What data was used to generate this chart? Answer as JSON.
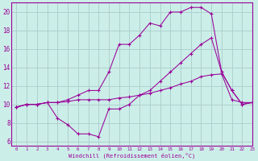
{
  "background_color": "#cceee8",
  "grid_color": "#aacccc",
  "line_color": "#990099",
  "xlim": [
    -0.5,
    23
  ],
  "ylim": [
    5.5,
    21
  ],
  "yticks": [
    6,
    8,
    10,
    12,
    14,
    16,
    18,
    20
  ],
  "xticks": [
    0,
    1,
    2,
    3,
    4,
    5,
    6,
    7,
    8,
    9,
    10,
    11,
    12,
    13,
    14,
    15,
    16,
    17,
    18,
    19,
    20,
    21,
    22,
    23
  ],
  "xlabel": "Windchill (Refroidissement éolien,°C)",
  "series": [
    {
      "x": [
        0,
        1,
        2,
        3,
        4,
        5,
        6,
        7,
        8,
        9,
        10,
        11,
        12,
        13,
        14,
        15,
        16,
        17,
        18,
        19,
        20,
        21,
        22,
        23
      ],
      "y": [
        9.7,
        10.0,
        10.0,
        10.2,
        10.2,
        10.3,
        10.5,
        10.5,
        10.5,
        10.5,
        10.7,
        10.8,
        11.0,
        11.2,
        11.5,
        11.8,
        12.2,
        12.5,
        13.0,
        13.2,
        13.3,
        10.5,
        10.2,
        10.2
      ]
    },
    {
      "x": [
        0,
        1,
        2,
        3,
        4,
        5,
        6,
        7,
        8,
        9,
        10,
        11,
        12,
        13,
        14,
        15,
        16,
        17,
        18,
        19,
        20,
        21,
        22,
        23
      ],
      "y": [
        9.7,
        10.0,
        10.0,
        10.2,
        8.5,
        7.8,
        6.8,
        6.8,
        6.5,
        9.5,
        9.5,
        10.0,
        11.0,
        11.5,
        12.5,
        13.5,
        14.5,
        15.5,
        16.5,
        17.2,
        13.5,
        11.5,
        10.0,
        10.2
      ]
    },
    {
      "x": [
        0,
        1,
        2,
        3,
        4,
        5,
        6,
        7,
        8,
        9,
        10,
        11,
        12,
        13,
        14,
        15,
        16,
        17,
        18,
        19,
        20,
        21,
        22,
        23
      ],
      "y": [
        9.7,
        10.0,
        10.0,
        10.2,
        10.2,
        10.5,
        11.0,
        11.5,
        11.5,
        13.5,
        16.5,
        16.5,
        17.5,
        18.8,
        18.5,
        20.0,
        20.0,
        20.5,
        20.5,
        19.8,
        13.5,
        11.5,
        10.0,
        10.2
      ]
    }
  ]
}
